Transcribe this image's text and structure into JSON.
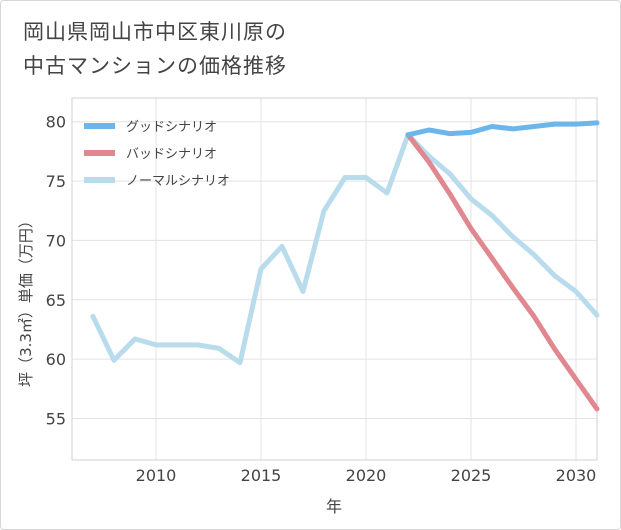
{
  "title": {
    "line1": "岡山県岡山市中区東川原の",
    "line2": "中古マンションの価格推移"
  },
  "chart_data": {
    "type": "line",
    "title": "岡山県岡山市中区東川原の中古マンションの価格推移",
    "xlabel": "年",
    "ylabel": "坪（3.3㎡）単価（万円）",
    "xlim": [
      2006,
      2031
    ],
    "ylim": [
      51.5,
      82
    ],
    "xticks": [
      2010,
      2015,
      2020,
      2025,
      2030
    ],
    "yticks": [
      55,
      60,
      65,
      70,
      75,
      80
    ],
    "legend_position": "top-left",
    "series": [
      {
        "name": "グッドシナリオ",
        "color": "#6bb6ea",
        "x": [
          2022,
          2023,
          2024,
          2025,
          2026,
          2027,
          2028,
          2029,
          2030,
          2031
        ],
        "values": [
          78.9,
          79.3,
          79.0,
          79.1,
          79.6,
          79.4,
          79.6,
          79.8,
          79.8,
          79.9
        ]
      },
      {
        "name": "バッドシナリオ",
        "color": "#e0878f",
        "x": [
          2022,
          2023,
          2024,
          2025,
          2026,
          2027,
          2028,
          2029,
          2030,
          2031
        ],
        "values": [
          78.9,
          76.6,
          73.9,
          71.0,
          68.5,
          66.0,
          63.6,
          60.8,
          58.3,
          55.8
        ]
      },
      {
        "name": "ノーマルシナリオ",
        "color": "#b9dcec",
        "x": [
          2007,
          2008,
          2009,
          2010,
          2011,
          2012,
          2013,
          2014,
          2015,
          2016,
          2017,
          2018,
          2019,
          2020,
          2021,
          2022,
          2023,
          2024,
          2025,
          2026,
          2027,
          2028,
          2029,
          2030,
          2031
        ],
        "values": [
          63.6,
          59.9,
          61.7,
          61.2,
          61.2,
          61.2,
          60.9,
          59.7,
          67.6,
          69.5,
          65.7,
          72.5,
          75.3,
          75.3,
          74.0,
          78.9,
          77.1,
          75.6,
          73.5,
          72.1,
          70.3,
          68.8,
          67.0,
          65.7,
          63.7
        ]
      }
    ]
  }
}
